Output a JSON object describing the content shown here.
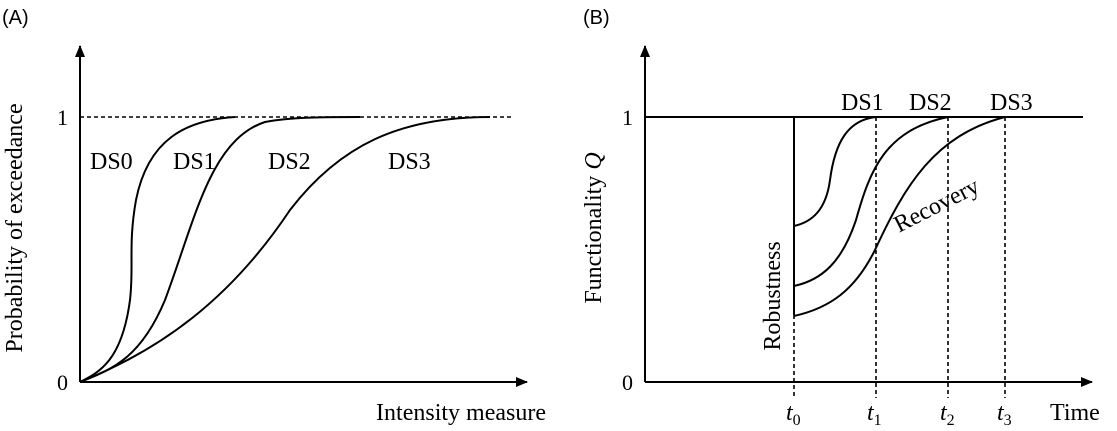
{
  "panel_a": {
    "tag": "(A)",
    "y_label": "Probability of exceedance",
    "x_label": "Intensity measure",
    "tick_one": "1",
    "tick_zero": "0",
    "curves": [
      "DS0",
      "DS1",
      "DS2",
      "DS3"
    ]
  },
  "panel_b": {
    "tag": "(B)",
    "y_label_text": "Functionality ",
    "y_label_var": "Q",
    "x_label": "Time",
    "tick_one": "1",
    "tick_zero": "0",
    "curves": [
      "DS1",
      "DS2",
      "DS3"
    ],
    "robustness_label": "Robustness",
    "recovery_label": "Recovery",
    "times": [
      {
        "base": "t",
        "sub": "0"
      },
      {
        "base": "t",
        "sub": "1"
      },
      {
        "base": "t",
        "sub": "2"
      },
      {
        "base": "t",
        "sub": "3"
      }
    ]
  }
}
